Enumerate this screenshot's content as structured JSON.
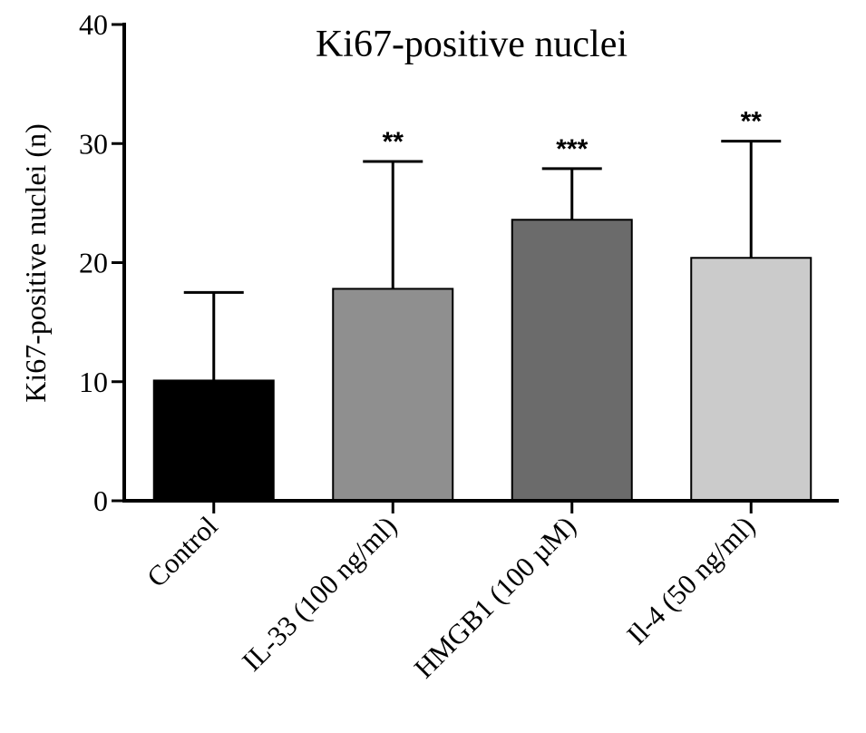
{
  "chart_data": {
    "type": "bar",
    "title": "Ki67-positive nuclei",
    "xlabel": "",
    "ylabel": "Ki67-positive nuclei (n)",
    "ylim": [
      0,
      40
    ],
    "yticks": [
      "0",
      "10",
      "20",
      "30",
      "40"
    ],
    "categories": [
      "Control",
      "IL-33 (100 ng/ml)",
      "HMGB1 (100 µM)",
      "Il-4 (50 ng/ml)"
    ],
    "values": [
      10.1,
      17.8,
      23.6,
      20.4
    ],
    "error_upper": [
      17.5,
      28.5,
      27.9,
      30.2
    ],
    "significance": [
      "",
      "**",
      "***",
      "**"
    ],
    "colors": [
      "#000000",
      "#8f8f8f",
      "#6b6b6b",
      "#cbcbcb"
    ],
    "grid": false,
    "legend": "none"
  }
}
